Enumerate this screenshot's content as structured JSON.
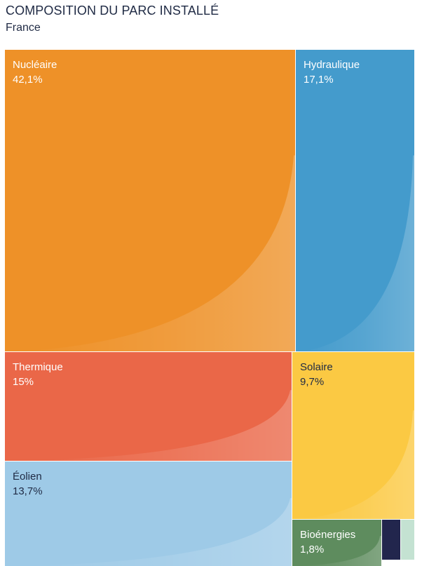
{
  "header": {
    "title": "COMPOSITION DU PARC INSTALLÉ",
    "subtitle": "France"
  },
  "chart_data": {
    "type": "treemap",
    "title": "COMPOSITION DU PARC INSTALLÉ",
    "subtitle": "France",
    "unit": "%",
    "categories": [
      "Nucléaire",
      "Hydraulique",
      "Thermique",
      "Solaire",
      "Éolien",
      "Bioénergies"
    ],
    "values": [
      42.1,
      17.1,
      15,
      9.7,
      13.7,
      1.8
    ],
    "value_labels": [
      "42,1%",
      "17,1%",
      "15%",
      "9,7%",
      "13,7%",
      "1,8%"
    ],
    "colors": [
      "#ee9128",
      "#449bcc",
      "#ea6748",
      "#fbc943",
      "#9ecae7",
      "#5e8c5e"
    ],
    "text_colors": [
      "#ffffff",
      "#ffffff",
      "#ffffff",
      "#1f2a44",
      "#1f2a44",
      "#ffffff"
    ],
    "extra_small_tiles": [
      {
        "color": "#22264d"
      },
      {
        "color": "#c4e2d2"
      }
    ]
  }
}
